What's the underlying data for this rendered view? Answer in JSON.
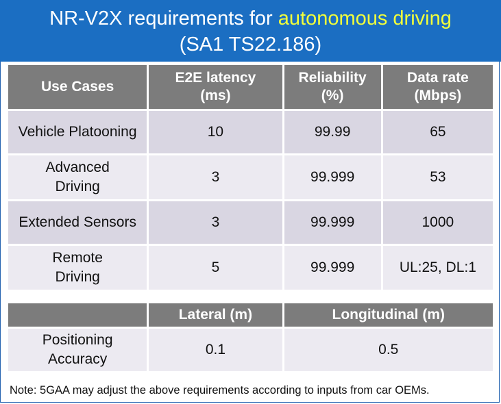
{
  "title": {
    "line1_prefix": "NR-V2X requirements for ",
    "line1_highlight": "autonomous driving",
    "line2": "(SA1 TS22.186)"
  },
  "requirements_table": {
    "headers": {
      "use_cases": "Use Cases",
      "latency_line1": "E2E latency",
      "latency_line2": "(ms)",
      "reliability_line1": "Reliability",
      "reliability_line2": "(%)",
      "datarate_line1": "Data rate",
      "datarate_line2": "(Mbps)"
    },
    "rows": [
      {
        "use_case_line1": "Vehicle Platooning",
        "use_case_line2": "",
        "latency": "10",
        "reliability": "99.99",
        "data_rate": "65"
      },
      {
        "use_case_line1": "Advanced",
        "use_case_line2": "Driving",
        "latency": "3",
        "reliability": "99.999",
        "data_rate": "53"
      },
      {
        "use_case_line1": "Extended Sensors",
        "use_case_line2": "",
        "latency": "3",
        "reliability": "99.999",
        "data_rate": "1000"
      },
      {
        "use_case_line1": "Remote",
        "use_case_line2": "Driving",
        "latency": "5",
        "reliability": "99.999",
        "data_rate": "UL:25, DL:1"
      }
    ]
  },
  "positioning_table": {
    "headers": {
      "blank": "",
      "lateral": "Lateral (m)",
      "longitudinal": "Longitudinal (m)"
    },
    "row": {
      "label_line1": "Positioning",
      "label_line2": "Accuracy",
      "lateral": "0.1",
      "longitudinal": "0.5"
    }
  },
  "note": "Note: 5GAA may adjust the above requirements according to inputs from car OEMs.",
  "colors": {
    "title_bg": "#1b6ec2",
    "highlight": "#f2ff3a",
    "header_bg": "#7c7c7c",
    "row_dark": "#d9d6e2",
    "row_light": "#eceaf1"
  }
}
